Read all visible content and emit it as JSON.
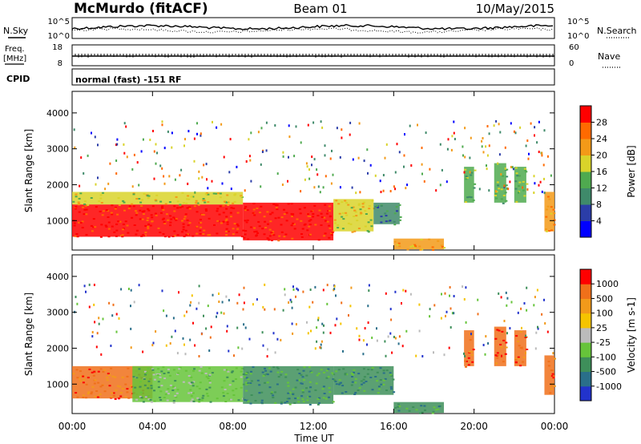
{
  "header": {
    "station": "McMurdo (fitACF)",
    "beam": "Beam 01",
    "date": "10/May/2015"
  },
  "top_strips": {
    "nsky_label": "N.Sky",
    "nsearch_label": "N.Search",
    "noise_left_top": "10^5",
    "noise_left_bottom": "10^0",
    "noise_right_top": "10^5",
    "noise_right_bottom": "10^0",
    "freq_label_1": "Freq.",
    "freq_label_2": "[MHz]",
    "freq_top": "18",
    "freq_bottom": "8",
    "nave_label": "Nave",
    "nave_top": "60",
    "nave_bottom": "0",
    "cpid_label": "CPID",
    "cpid_value": "normal (fast) -151 RF"
  },
  "chart_data": [
    {
      "type": "heatmap",
      "title": "",
      "xlabel": "Time UT",
      "ylabel": "Slant Range [km]",
      "x_ticks": [
        "00:00",
        "04:00",
        "08:00",
        "12:00",
        "16:00",
        "20:00",
        "00:00"
      ],
      "xlim_hours": [
        0,
        24
      ],
      "y_ticks": [
        1000,
        2000,
        3000,
        4000
      ],
      "ylim": [
        180,
        4600
      ],
      "colorbar": {
        "label": "Power [dB]",
        "ticks": [
          "4",
          "8",
          "12",
          "16",
          "20",
          "24",
          "28"
        ],
        "range": [
          0,
          32
        ],
        "colors": [
          "#0000ff",
          "#2b3da8",
          "#3f8a6a",
          "#4faa4f",
          "#d9d32a",
          "#f39a18",
          "#ff6a00",
          "#ff0000"
        ]
      },
      "regions": [
        {
          "t0": 0.0,
          "t1": 8.5,
          "r0": 550,
          "r1": 1450,
          "level": 7
        },
        {
          "t0": 0.0,
          "t1": 8.5,
          "r0": 1450,
          "r1": 1800,
          "level": 4
        },
        {
          "t0": 8.5,
          "t1": 13.0,
          "r0": 450,
          "r1": 1500,
          "level": 7
        },
        {
          "t0": 13.0,
          "t1": 15.0,
          "r0": 700,
          "r1": 1600,
          "level": 4
        },
        {
          "t0": 15.0,
          "t1": 16.3,
          "r0": 900,
          "r1": 1500,
          "level": 2
        },
        {
          "t0": 16.0,
          "t1": 18.5,
          "r0": 200,
          "r1": 500,
          "level": 5
        },
        {
          "t0": 19.5,
          "t1": 20.0,
          "r0": 1500,
          "r1": 2500,
          "level": 3
        },
        {
          "t0": 21.0,
          "t1": 21.6,
          "r0": 1500,
          "r1": 2600,
          "level": 3
        },
        {
          "t0": 22.0,
          "t1": 22.6,
          "r0": 1500,
          "r1": 2500,
          "level": 3
        },
        {
          "t0": 23.5,
          "t1": 24.0,
          "r0": 700,
          "r1": 1800,
          "level": 5
        }
      ]
    },
    {
      "type": "heatmap",
      "title": "",
      "xlabel": "Time UT",
      "ylabel": "Slant Range [km]",
      "x_ticks": [
        "00:00",
        "04:00",
        "08:00",
        "12:00",
        "16:00",
        "20:00",
        "00:00"
      ],
      "xlim_hours": [
        0,
        24
      ],
      "y_ticks": [
        1000,
        2000,
        3000,
        4000
      ],
      "ylim": [
        180,
        4600
      ],
      "colorbar": {
        "label": "Velocity [m s-1]",
        "ticks": [
          "1000",
          "500",
          "100",
          "25",
          "-25",
          "-100",
          "-500",
          "-1000"
        ],
        "colors": [
          "#2233cc",
          "#2a6f8a",
          "#3e8f5a",
          "#66c43a",
          "#bbbbbb",
          "#f5c400",
          "#f29a1a",
          "#f0701a",
          "#ff0000"
        ]
      },
      "regions": [
        {
          "t0": 0.0,
          "t1": 4.0,
          "r0": 600,
          "r1": 1500,
          "level": 7
        },
        {
          "t0": 3.0,
          "t1": 8.5,
          "r0": 500,
          "r1": 1500,
          "level": 3
        },
        {
          "t0": 8.5,
          "t1": 13.0,
          "r0": 450,
          "r1": 1500,
          "level": 2
        },
        {
          "t0": 13.0,
          "t1": 16.0,
          "r0": 700,
          "r1": 1500,
          "level": 2
        },
        {
          "t0": 16.0,
          "t1": 18.5,
          "r0": 200,
          "r1": 500,
          "level": 2
        },
        {
          "t0": 19.5,
          "t1": 20.0,
          "r0": 1500,
          "r1": 2500,
          "level": 7
        },
        {
          "t0": 21.0,
          "t1": 21.6,
          "r0": 1500,
          "r1": 2600,
          "level": 7
        },
        {
          "t0": 22.0,
          "t1": 22.6,
          "r0": 1500,
          "r1": 2500,
          "level": 7
        },
        {
          "t0": 23.5,
          "t1": 24.0,
          "r0": 700,
          "r1": 1800,
          "level": 7
        }
      ]
    }
  ]
}
